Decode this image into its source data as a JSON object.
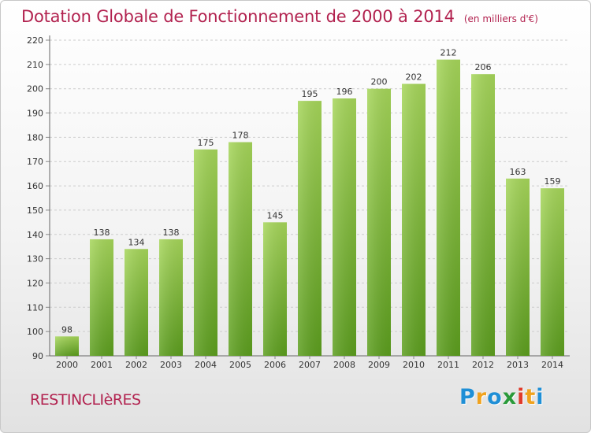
{
  "header": {
    "title": "Dotation Globale de Fonctionnement de 2000 à 2014",
    "subtitle": "(en milliers d'€)"
  },
  "footer": {
    "commune": "RESTINCLIèRES",
    "brand_letters": [
      "P",
      "r",
      "o",
      "x",
      "i",
      "t",
      "i"
    ]
  },
  "chart_data": {
    "type": "bar",
    "categories": [
      "2000",
      "2001",
      "2002",
      "2003",
      "2004",
      "2005",
      "2006",
      "2007",
      "2008",
      "2009",
      "2010",
      "2011",
      "2012",
      "2013",
      "2014"
    ],
    "values": [
      98,
      138,
      134,
      138,
      175,
      178,
      145,
      195,
      196,
      200,
      202,
      212,
      206,
      163,
      159
    ],
    "title": "Dotation Globale de Fonctionnement de 2000 à 2014",
    "subtitle": "(en milliers d'€)",
    "ylim": [
      90,
      220
    ],
    "yticks": [
      90,
      100,
      110,
      120,
      130,
      140,
      150,
      160,
      170,
      180,
      190,
      200,
      210,
      220
    ],
    "grid": true,
    "bar_color_light": "#a6d65a",
    "bar_color_dark": "#5c9e1e",
    "grid_color": "#cccccc",
    "label_color": "#333333"
  }
}
